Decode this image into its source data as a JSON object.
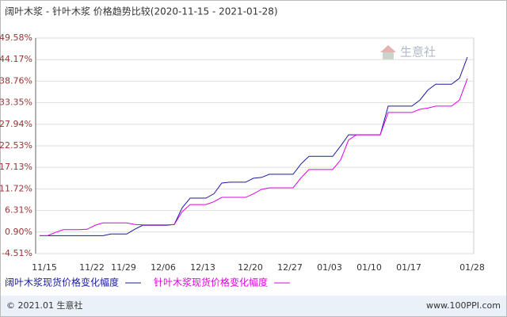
{
  "chart_data": {
    "type": "line",
    "title": "阔叶木浆 - 针叶木浆 价格趋势比较(2020-11-15 - 2021-01-28)",
    "categories": [
      "11/15",
      null,
      null,
      null,
      null,
      null,
      "11/22",
      null,
      null,
      null,
      "11/29",
      null,
      null,
      null,
      null,
      "12/06",
      null,
      null,
      null,
      null,
      "12/13",
      null,
      null,
      null,
      null,
      null,
      "12/20",
      null,
      null,
      null,
      null,
      "12/27",
      null,
      null,
      null,
      null,
      "01/03",
      null,
      null,
      null,
      null,
      "01/10",
      null,
      null,
      null,
      null,
      "01/17",
      null,
      null,
      null,
      null,
      null,
      null,
      null,
      "01/28"
    ],
    "series": [
      {
        "name": "阔叶木浆现货价格变化幅度",
        "color": "#1a1aa0",
        "values": [
          0,
          0,
          0,
          0,
          0,
          0,
          0,
          0,
          0,
          0.4,
          0.4,
          0.4,
          1.6,
          2.6,
          2.6,
          2.6,
          2.6,
          2.8,
          7,
          9.4,
          9.4,
          9.4,
          10.5,
          13.2,
          13.4,
          13.4,
          13.4,
          14.4,
          14.6,
          15.4,
          15.4,
          15.4,
          15.4,
          18,
          19.9,
          19.9,
          19.9,
          19.9,
          22.5,
          25.3,
          25.3,
          25.3,
          25.3,
          25.3,
          32.5,
          32.5,
          32.5,
          32.5,
          34,
          36.5,
          38,
          38,
          38,
          39.5,
          44.8
        ]
      },
      {
        "name": "针叶木浆现货价格变化幅度",
        "color": "#e000e0",
        "values": [
          0,
          0,
          0.8,
          1.5,
          1.5,
          1.5,
          1.6,
          2.6,
          3.2,
          3.2,
          3.2,
          3.2,
          2.8,
          2.7,
          2.7,
          2.7,
          2.7,
          2.8,
          6,
          7.8,
          7.8,
          7.8,
          8.5,
          9.6,
          9.6,
          9.6,
          9.6,
          10.5,
          11.6,
          12,
          12,
          12,
          12,
          14.5,
          16.6,
          16.6,
          16.6,
          16.6,
          19,
          24,
          25.3,
          25.3,
          25.3,
          25.3,
          30.9,
          30.9,
          30.9,
          30.9,
          31.7,
          32,
          32.5,
          32.5,
          32.5,
          34,
          39.4
        ]
      }
    ],
    "ylim": [
      -4.51,
      49.58
    ],
    "yticks": [
      {
        "value": 49.58,
        "label": "49.58%"
      },
      {
        "value": 44.17,
        "label": "44.17%"
      },
      {
        "value": 38.76,
        "label": "38.76%"
      },
      {
        "value": 33.35,
        "label": "33.35%"
      },
      {
        "value": 27.94,
        "label": "27.94%"
      },
      {
        "value": 22.53,
        "label": "22.53%"
      },
      {
        "value": 17.13,
        "label": "17.13%"
      },
      {
        "value": 11.72,
        "label": "11.72%"
      },
      {
        "value": 6.31,
        "label": "6.31%"
      },
      {
        "value": 0.9,
        "label": "0.90%"
      },
      {
        "value": -4.51,
        "label": "-4.51%"
      }
    ],
    "grid": true,
    "watermark": "生意社",
    "footer_left": "© 2021.01 生意社",
    "footer_right": "www.100PPI.com"
  }
}
